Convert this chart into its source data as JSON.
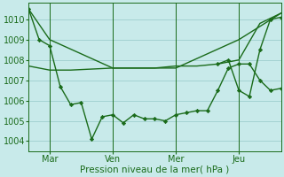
{
  "background_color": "#c8eaea",
  "grid_color": "#9ecece",
  "line_color": "#1a6b1a",
  "title": "Pression niveau de la mer( hPa )",
  "ylim": [
    1003.5,
    1010.8
  ],
  "yticks": [
    1004,
    1005,
    1006,
    1007,
    1008,
    1009,
    1010
  ],
  "xlim": [
    0,
    84
  ],
  "vline_x": [
    7,
    28,
    49,
    70,
    84
  ],
  "xtick_positions": [
    7,
    28,
    49,
    70
  ],
  "xtick_labels": [
    "Mar",
    "Ven",
    "Mer",
    "Jeu"
  ],
  "series": [
    {
      "x": [
        0,
        7,
        28,
        49,
        70,
        84
      ],
      "y": [
        1010.5,
        1009.0,
        1007.6,
        1007.6,
        1009.0,
        1010.3
      ],
      "marker": null,
      "lw": 1.0
    },
    {
      "x": [
        0,
        7,
        14,
        28,
        42,
        49,
        56,
        63,
        70,
        77,
        84
      ],
      "y": [
        1007.7,
        1007.5,
        1007.5,
        1007.6,
        1007.6,
        1007.7,
        1007.7,
        1007.8,
        1008.0,
        1009.8,
        1010.3
      ],
      "marker": null,
      "lw": 1.0
    },
    {
      "x": [
        0,
        3.5,
        7,
        10.5,
        14,
        17.5,
        21,
        24.5,
        28,
        31.5,
        35,
        38.5,
        42,
        45.5,
        49,
        52.5,
        56,
        59.5,
        63,
        66.5,
        70,
        73.5,
        77,
        80.5,
        84
      ],
      "y": [
        1010.5,
        1009.0,
        1008.7,
        1006.7,
        1005.8,
        1005.9,
        1004.1,
        1005.2,
        1005.3,
        1004.9,
        1005.3,
        1005.1,
        1005.1,
        1005.0,
        1005.3,
        1005.4,
        1005.5,
        1005.5,
        1006.5,
        1007.6,
        1007.8,
        1007.8,
        1007.0,
        1006.5,
        1006.6
      ],
      "marker": "D",
      "markersize": 2.2,
      "lw": 1.0
    },
    {
      "x": [
        63,
        66.5,
        70,
        73.5,
        77,
        80.5,
        84
      ],
      "y": [
        1007.8,
        1008.0,
        1006.5,
        1006.2,
        1008.5,
        1010.0,
        1010.1
      ],
      "marker": "D",
      "markersize": 2.2,
      "lw": 1.0
    }
  ]
}
